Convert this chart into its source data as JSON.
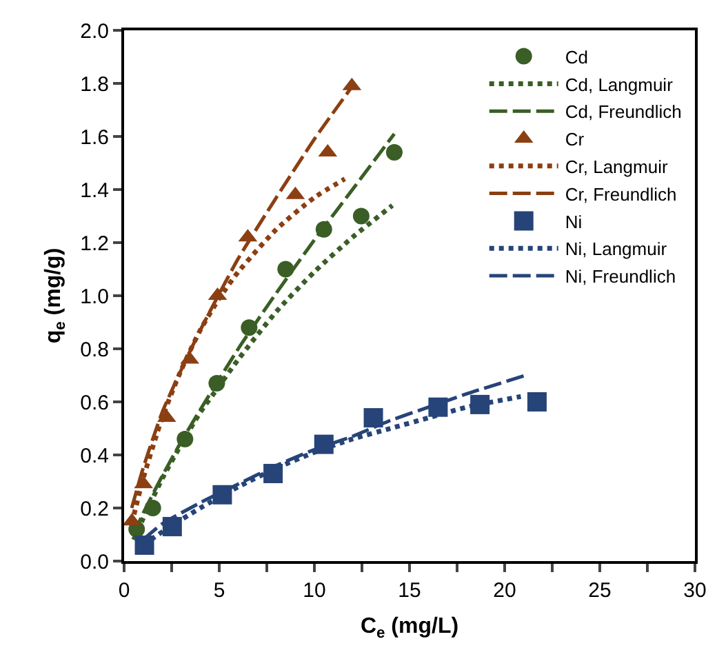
{
  "chart_data": {
    "type": "line",
    "xlabel": "C$_{e}$ (mg/L)",
    "ylabel": "q$_{e}$ (mg/g)",
    "xlim": [
      0,
      30
    ],
    "ylim": [
      0,
      2
    ],
    "xticks": [
      0,
      {
        "value": 2.5,
        "label": null
      },
      5,
      {
        "value": 7.5,
        "label": null
      },
      10,
      {
        "value": 12.5,
        "label": null
      },
      15,
      {
        "value": 17.5,
        "label": null
      },
      20,
      {
        "value": 22.5,
        "label": null
      },
      25,
      {
        "value": 27.5,
        "label": null
      },
      30
    ],
    "yticks": [
      {
        "value": 0,
        "label": "0.0"
      },
      {
        "value": 0.2,
        "label": "0.2"
      },
      {
        "value": 0.4,
        "label": "0.4"
      },
      {
        "value": 0.6,
        "label": "0.6"
      },
      {
        "value": 0.8,
        "label": "0.8"
      },
      {
        "value": 1,
        "label": "1.0"
      },
      {
        "value": 1.2,
        "label": "1.2"
      },
      {
        "value": 1.4,
        "label": "1.4"
      },
      {
        "value": 1.6,
        "label": "1.6"
      },
      {
        "value": 1.8,
        "label": "1.8"
      },
      {
        "value": 2,
        "label": "2.0"
      }
    ],
    "grid": false,
    "legend": "top right",
    "series": [
      {
        "name": "Cd",
        "type": "scatter",
        "marker": "circle",
        "color": "#3a5e25",
        "x": [
          0.66,
          1.51,
          3.2,
          4.87,
          6.57,
          8.49,
          10.5,
          12.46,
          14.2
        ],
        "values": [
          0.12,
          0.2,
          0.46,
          0.67,
          0.88,
          1.1,
          1.25,
          1.3,
          1.54
        ]
      },
      {
        "name": "Cd, Langmuir",
        "line_style": "dotted",
        "color": "#3a5e25",
        "x": [
          0.5,
          1,
          2,
          3,
          4,
          5,
          6,
          8,
          10,
          12,
          14.1
        ],
        "values": [
          0.08,
          0.16,
          0.31,
          0.44,
          0.56,
          0.66,
          0.76,
          0.94,
          1.09,
          1.22,
          1.34
        ]
      },
      {
        "name": "Cd, Freundlich",
        "line_style": "dashed",
        "color": "#3a5e25",
        "x": [
          0.5,
          1,
          2,
          3,
          4,
          6,
          8,
          10,
          12,
          14.2
        ],
        "values": [
          0.1,
          0.18,
          0.32,
          0.45,
          0.57,
          0.8,
          1.01,
          1.21,
          1.4,
          1.61
        ]
      },
      {
        "name": "Cr",
        "type": "scatter",
        "marker": "triangle",
        "color": "#8b3f12",
        "x": [
          0.41,
          1.02,
          2.24,
          3.45,
          4.91,
          6.5,
          9.0,
          10.7,
          11.97
        ],
        "values": [
          0.15,
          0.29,
          0.54,
          0.76,
          1.0,
          1.22,
          1.38,
          1.54,
          1.79
        ]
      },
      {
        "name": "Cr, Langmuir",
        "line_style": "dotted",
        "color": "#8b3f12",
        "x": [
          0.4,
          1,
          2,
          3,
          4,
          5,
          6,
          8,
          10,
          11.6
        ],
        "values": [
          0.14,
          0.31,
          0.54,
          0.72,
          0.87,
          0.99,
          1.09,
          1.25,
          1.37,
          1.44
        ]
      },
      {
        "name": "Cr, Freundlich",
        "line_style": "dashed",
        "color": "#8b3f12",
        "x": [
          0.4,
          1,
          2,
          3,
          4,
          6,
          8,
          10,
          12.1
        ],
        "values": [
          0.2,
          0.35,
          0.56,
          0.72,
          0.87,
          1.14,
          1.37,
          1.59,
          1.8
        ]
      },
      {
        "name": "Ni",
        "type": "scatter",
        "marker": "square",
        "color": "#264478",
        "x": [
          1.07,
          2.53,
          5.16,
          7.83,
          10.5,
          13.1,
          16.5,
          18.7,
          21.7
        ],
        "values": [
          0.06,
          0.13,
          0.25,
          0.33,
          0.44,
          0.54,
          0.58,
          0.59,
          0.6
        ]
      },
      {
        "name": "Ni, Langmuir",
        "line_style": "dotted",
        "color": "#264478",
        "x": [
          1,
          2,
          4,
          6,
          8,
          10,
          12,
          14,
          16,
          18,
          20.85
        ],
        "values": [
          0.06,
          0.11,
          0.2,
          0.28,
          0.35,
          0.41,
          0.46,
          0.5,
          0.54,
          0.58,
          0.62
        ]
      },
      {
        "name": "Ni, Freundlich",
        "line_style": "dashed",
        "color": "#264478",
        "x": [
          1,
          2,
          4,
          6,
          8,
          10,
          12,
          14,
          16,
          18,
          21.1
        ],
        "values": [
          0.08,
          0.14,
          0.22,
          0.29,
          0.36,
          0.42,
          0.47,
          0.53,
          0.58,
          0.63,
          0.7
        ]
      }
    ]
  }
}
